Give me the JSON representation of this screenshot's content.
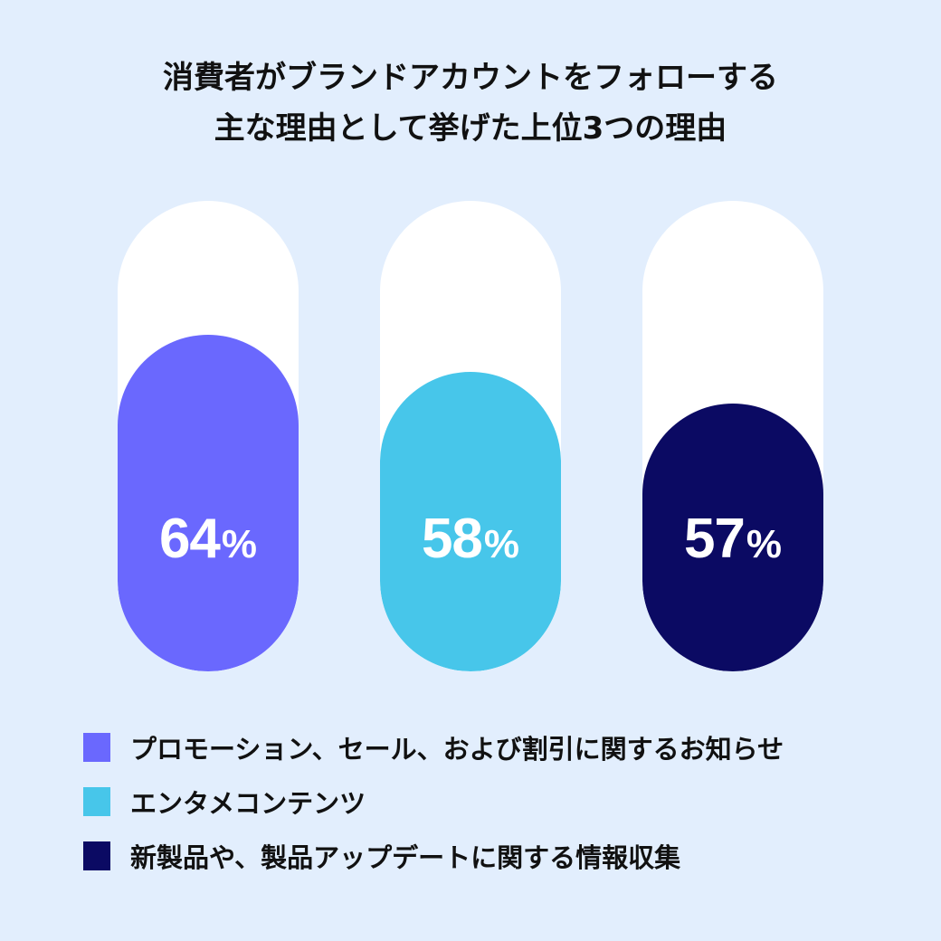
{
  "title": {
    "line1": "消費者がブランドアカウントをフォローする",
    "line2": "主な理由として挙げた上位3つの理由"
  },
  "bars": [
    {
      "value": 64,
      "value_label": "64",
      "unit": "%",
      "color": "#6a68fe",
      "legend": "プロモーション、セール、および割引に関するお知らせ"
    },
    {
      "value": 58,
      "value_label": "58",
      "unit": "%",
      "color": "#47c6ea",
      "legend": "エンタメコンテンツ"
    },
    {
      "value": 57,
      "value_label": "57",
      "unit": "%",
      "color": "#0b0a63",
      "legend": "新製品や、製品アップデートに関する情報収集"
    }
  ],
  "colors": {
    "background": "#e2eefd",
    "track": "#ffffff"
  },
  "chart_data": {
    "type": "bar",
    "title": "消費者がブランドアカウントをフォローする主な理由として挙げた上位3つの理由",
    "categories": [
      "プロモーション、セール、および割引に関するお知らせ",
      "エンタメコンテンツ",
      "新製品や、製品アップデートに関する情報収集"
    ],
    "values": [
      64,
      58,
      57
    ],
    "unit": "%",
    "xlabel": "",
    "ylabel": "",
    "ylim": [
      0,
      100
    ],
    "grid": false,
    "legend_position": "bottom",
    "orientation": "vertical",
    "style": "rounded pill bars with white track background"
  }
}
